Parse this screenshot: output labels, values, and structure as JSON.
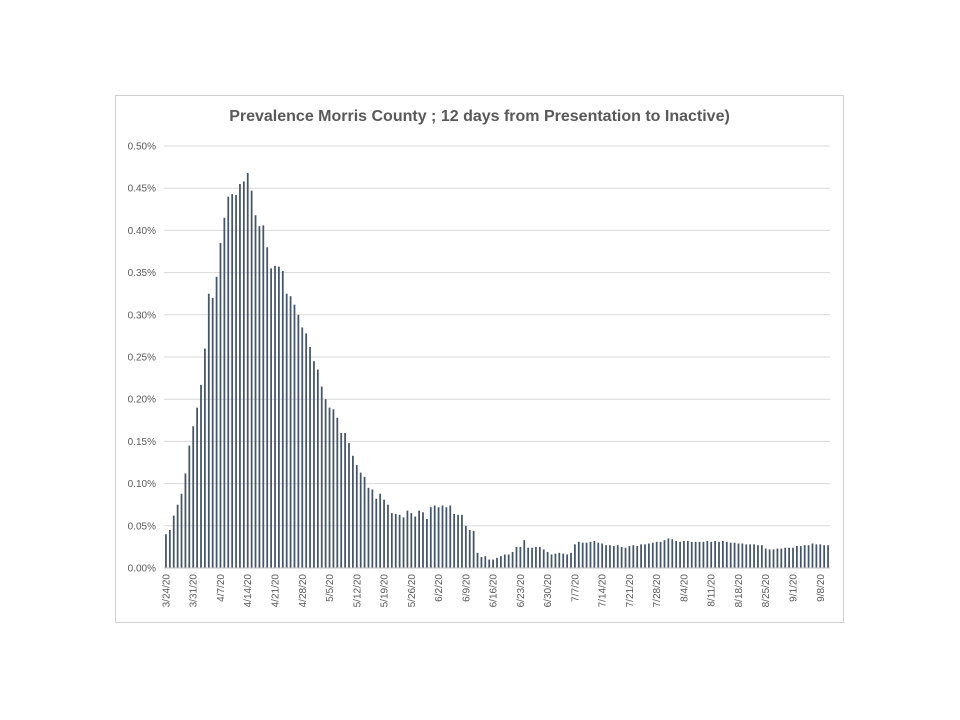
{
  "chart_data": {
    "type": "bar",
    "title": "Prevalence Morris County ; 12 days from Presentation to Inactive)",
    "xlabel": "",
    "ylabel": "",
    "ylim": [
      0,
      0.5
    ],
    "y_ticks": [
      "0.00%",
      "0.05%",
      "0.10%",
      "0.15%",
      "0.20%",
      "0.25%",
      "0.30%",
      "0.35%",
      "0.40%",
      "0.45%",
      "0.50%"
    ],
    "x_tick_labels": [
      "3/24/20",
      "3/31/20",
      "4/7/20",
      "4/14/20",
      "4/21/20",
      "4/28/20",
      "5/5/20",
      "5/12/20",
      "5/19/20",
      "5/26/20",
      "6/2/20",
      "6/9/20",
      "6/16/20",
      "6/23/20",
      "6/30/20",
      "7/7/20",
      "7/14/20",
      "7/21/20",
      "7/28/20",
      "8/4/20",
      "8/11/20",
      "8/18/20",
      "8/25/20",
      "9/1/20",
      "9/8/20"
    ],
    "x_start": "3/24/20",
    "grid": true,
    "legend": "none",
    "bar_color": "#44546a",
    "values": [
      0.04,
      0.045,
      0.062,
      0.075,
      0.088,
      0.112,
      0.145,
      0.168,
      0.19,
      0.217,
      0.26,
      0.325,
      0.32,
      0.345,
      0.385,
      0.415,
      0.44,
      0.443,
      0.442,
      0.455,
      0.458,
      0.468,
      0.447,
      0.418,
      0.405,
      0.406,
      0.38,
      0.355,
      0.358,
      0.357,
      0.352,
      0.325,
      0.322,
      0.312,
      0.3,
      0.285,
      0.278,
      0.262,
      0.245,
      0.235,
      0.215,
      0.2,
      0.19,
      0.188,
      0.178,
      0.16,
      0.16,
      0.148,
      0.133,
      0.122,
      0.113,
      0.108,
      0.095,
      0.093,
      0.082,
      0.088,
      0.081,
      0.075,
      0.065,
      0.064,
      0.063,
      0.06,
      0.068,
      0.065,
      0.061,
      0.068,
      0.066,
      0.058,
      0.072,
      0.074,
      0.072,
      0.074,
      0.072,
      0.074,
      0.064,
      0.063,
      0.063,
      0.05,
      0.045,
      0.044,
      0.018,
      0.013,
      0.014,
      0.01,
      0.01,
      0.012,
      0.014,
      0.016,
      0.016,
      0.019,
      0.025,
      0.025,
      0.033,
      0.024,
      0.024,
      0.025,
      0.025,
      0.022,
      0.019,
      0.016,
      0.017,
      0.018,
      0.017,
      0.016,
      0.018,
      0.028,
      0.031,
      0.03,
      0.03,
      0.031,
      0.032,
      0.03,
      0.029,
      0.027,
      0.027,
      0.026,
      0.027,
      0.025,
      0.024,
      0.026,
      0.027,
      0.026,
      0.028,
      0.028,
      0.029,
      0.03,
      0.031,
      0.031,
      0.033,
      0.035,
      0.034,
      0.032,
      0.031,
      0.032,
      0.032,
      0.031,
      0.031,
      0.031,
      0.031,
      0.032,
      0.031,
      0.032,
      0.031,
      0.032,
      0.031,
      0.03,
      0.03,
      0.029,
      0.029,
      0.028,
      0.028,
      0.028,
      0.027,
      0.027,
      0.023,
      0.022,
      0.022,
      0.023,
      0.023,
      0.024,
      0.024,
      0.024,
      0.026,
      0.026,
      0.027,
      0.027,
      0.029,
      0.028,
      0.028,
      0.027,
      0.027
    ]
  }
}
